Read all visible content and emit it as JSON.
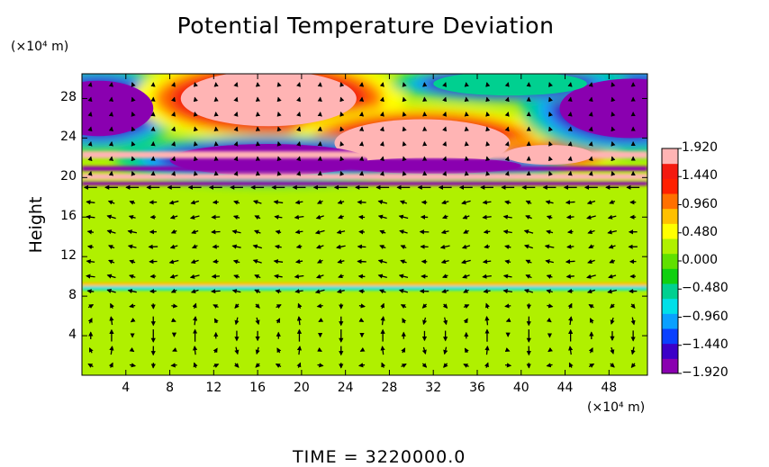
{
  "chart_data": {
    "type": "heatmap",
    "title": "Potential Temperature Deviation",
    "ylabel": "Height",
    "x_unit_label": "(×10⁴ m)",
    "y_unit_label": "(×10⁴ m)",
    "footer": "TIME  =  3220000.0",
    "x_range": [
      0,
      51.5
    ],
    "y_range": [
      0,
      30.5
    ],
    "x_ticks": [
      {
        "value": 4,
        "label": "4"
      },
      {
        "value": 8,
        "label": "8"
      },
      {
        "value": 12,
        "label": "12"
      },
      {
        "value": 16,
        "label": "16"
      },
      {
        "value": 20,
        "label": "20"
      },
      {
        "value": 24,
        "label": "24"
      },
      {
        "value": 28,
        "label": "28"
      },
      {
        "value": 32,
        "label": "32"
      },
      {
        "value": 36,
        "label": "36"
      },
      {
        "value": 40,
        "label": "40"
      },
      {
        "value": 44,
        "label": "44"
      },
      {
        "value": 48,
        "label": "48"
      }
    ],
    "y_ticks": [
      {
        "value": 4,
        "label": "4"
      },
      {
        "value": 8,
        "label": "8"
      },
      {
        "value": 12,
        "label": "12"
      },
      {
        "value": 16,
        "label": "16"
      },
      {
        "value": 20,
        "label": "20"
      },
      {
        "value": 24,
        "label": "24"
      },
      {
        "value": 28,
        "label": "28"
      }
    ],
    "colorbar": {
      "min": -1.92,
      "max": 1.92,
      "ticks": [
        {
          "value": 1.92,
          "label": "1.920"
        },
        {
          "value": 1.44,
          "label": "1.440"
        },
        {
          "value": 0.96,
          "label": "0.960"
        },
        {
          "value": 0.48,
          "label": "0.480"
        },
        {
          "value": 0.0,
          "label": "0.000"
        },
        {
          "value": -0.48,
          "label": "−0.480"
        },
        {
          "value": -0.96,
          "label": "−0.960"
        },
        {
          "value": -1.44,
          "label": "−1.440"
        },
        {
          "value": -1.92,
          "label": "−1.920"
        }
      ],
      "colors": [
        "#8a00b0",
        "#3c00c8",
        "#0a40ff",
        "#0aa0ff",
        "#00e0e8",
        "#00d090",
        "#10d010",
        "#60e000",
        "#b0f000",
        "#ffff00",
        "#ffc000",
        "#ff7000",
        "#ff2000",
        "#f41a10",
        "#ffb4b4"
      ]
    },
    "features": [
      {
        "shape": "ellipse",
        "cx": 1.5,
        "cy": 27,
        "rx": 5,
        "ry": 2.8,
        "value": -1.9
      },
      {
        "shape": "ellipse",
        "cx": 17,
        "cy": 28,
        "rx": 8,
        "ry": 2.8,
        "value": 1.9
      },
      {
        "shape": "ellipse",
        "cx": 31,
        "cy": 23.5,
        "rx": 8,
        "ry": 2.4,
        "value": 1.9
      },
      {
        "shape": "ellipse",
        "cx": 42.5,
        "cy": 22.3,
        "rx": 4,
        "ry": 1.0,
        "value": 1.9
      },
      {
        "shape": "ellipse",
        "cx": 50,
        "cy": 27,
        "rx": 6.5,
        "ry": 3,
        "value": -1.9
      },
      {
        "shape": "ellipse",
        "cx": 39,
        "cy": 29.5,
        "rx": 7,
        "ry": 1.2,
        "value": -0.6
      },
      {
        "shape": "ellipse",
        "cx": 17,
        "cy": 21.8,
        "rx": 9,
        "ry": 1.6,
        "value": -1.9
      },
      {
        "shape": "ellipse",
        "cx": 32,
        "cy": 21.2,
        "rx": 8,
        "ry": 0.8,
        "value": -1.9
      },
      {
        "shape": "band",
        "y": 22.3,
        "thickness": 0.7,
        "value": 1.9
      },
      {
        "shape": "band",
        "y": 20.9,
        "thickness": 0.5,
        "value": -1.9
      },
      {
        "shape": "band",
        "y": 20.1,
        "thickness": 0.6,
        "value": 1.9
      },
      {
        "shape": "band",
        "y": 19.4,
        "thickness": 0.4,
        "value": -1.9
      },
      {
        "shape": "band",
        "y": 9.2,
        "thickness": 0.4,
        "value": 0.8
      },
      {
        "shape": "band",
        "y": 8.8,
        "thickness": 0.4,
        "value": -0.8
      },
      {
        "shape": "band",
        "y": 11.3,
        "thickness": 0.8,
        "value": 0.35
      }
    ],
    "background_value": 0.2,
    "vector_field": {
      "description": "wind vectors on regular grid; strong leftward flow near y=19, rotating cells near surface",
      "x_spacing": 1.9,
      "y_spacing": 1.5
    }
  }
}
